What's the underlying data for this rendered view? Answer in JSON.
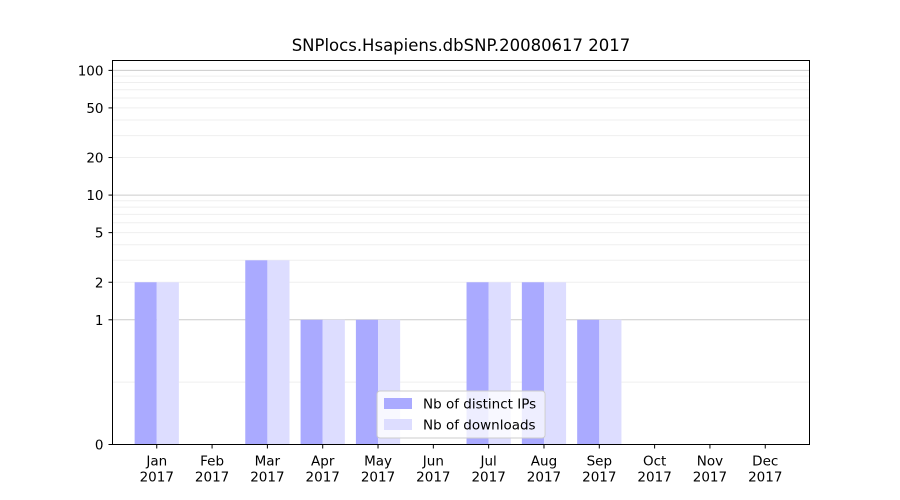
{
  "chart_data": {
    "type": "bar",
    "title": "SNPlocs.Hsapiens.dbSNP.20080617 2017",
    "xlabel": "",
    "ylabel": "",
    "yscale": "symlog",
    "ylim": [
      0,
      120
    ],
    "yticks": [
      {
        "value": 0,
        "label": "0"
      },
      {
        "value": 1,
        "label": "1"
      },
      {
        "value": 2,
        "label": "2"
      },
      {
        "value": 5,
        "label": "5"
      },
      {
        "value": 10,
        "label": "10"
      },
      {
        "value": 20,
        "label": "20"
      },
      {
        "value": 50,
        "label": "50"
      },
      {
        "value": 100,
        "label": "100"
      }
    ],
    "categories": [
      {
        "month": "Jan",
        "year": "2017"
      },
      {
        "month": "Feb",
        "year": "2017"
      },
      {
        "month": "Mar",
        "year": "2017"
      },
      {
        "month": "Apr",
        "year": "2017"
      },
      {
        "month": "May",
        "year": "2017"
      },
      {
        "month": "Jun",
        "year": "2017"
      },
      {
        "month": "Jul",
        "year": "2017"
      },
      {
        "month": "Aug",
        "year": "2017"
      },
      {
        "month": "Sep",
        "year": "2017"
      },
      {
        "month": "Oct",
        "year": "2017"
      },
      {
        "month": "Nov",
        "year": "2017"
      },
      {
        "month": "Dec",
        "year": "2017"
      }
    ],
    "series": [
      {
        "name": "Nb of distinct IPs",
        "color": "#aaaaff",
        "values": [
          2,
          0,
          3,
          1,
          1,
          0,
          2,
          2,
          1,
          0,
          0,
          0
        ]
      },
      {
        "name": "Nb of downloads",
        "color": "#ddddff",
        "values": [
          2,
          0,
          3,
          1,
          1,
          0,
          2,
          2,
          1,
          0,
          0,
          0
        ]
      }
    ],
    "grid": true,
    "legend_position": "lower-center"
  }
}
